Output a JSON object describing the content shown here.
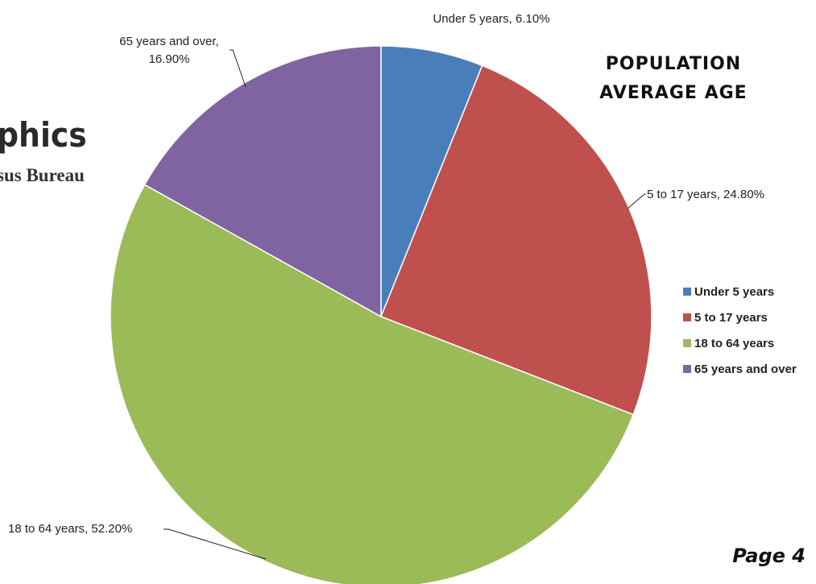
{
  "page": {
    "heading": "phics",
    "subheading": "sus Bureau",
    "footer": "Page 4"
  },
  "chart_data": {
    "type": "pie",
    "title": [
      "POPULATION",
      "AVERAGE AGE"
    ],
    "categories": [
      "Under 5 years",
      "5 to 17 years",
      "18 to 64 years",
      "65 years and over"
    ],
    "values": [
      6.1,
      24.8,
      52.2,
      16.9
    ],
    "value_labels": [
      [
        "Under 5 years, 6.10%"
      ],
      [
        "5 to 17 years, 24.80%"
      ],
      [
        "18 to 64 years, 52.20%"
      ],
      [
        "65 years and over,",
        "16.90%"
      ]
    ],
    "colors": [
      "#4a7ebb",
      "#c0504d",
      "#9bbb59",
      "#8064a2"
    ],
    "legend": "right"
  }
}
